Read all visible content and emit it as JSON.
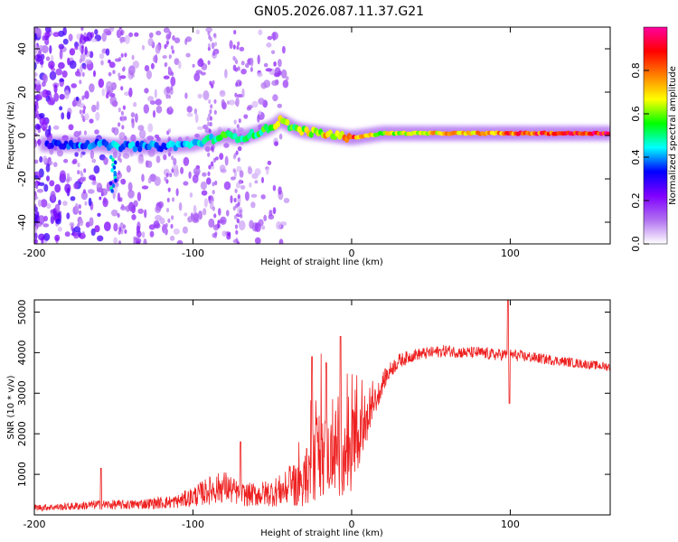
{
  "title": "GN05.2026.087.11.37.G21",
  "chart_data": [
    {
      "type": "heatmap",
      "name": "spectrogram",
      "xlabel": "Height of straight line (km)",
      "ylabel": "Frequency (Hz)",
      "xlim": [
        -200,
        163
      ],
      "ylim": [
        -50,
        50
      ],
      "xticks": [
        -200,
        -100,
        0,
        100
      ],
      "yticks": [
        -40,
        -20,
        0,
        20,
        40
      ],
      "colorbar": {
        "label": "Normalized spectral amplitude",
        "range": [
          0.0,
          1.0
        ],
        "ticks": [
          0.0,
          0.2,
          0.4,
          0.6,
          0.8
        ],
        "colormap": [
          "#ffffff",
          "#b070f0",
          "#8000ff",
          "#0000ff",
          "#00ffff",
          "#00ff00",
          "#ffff00",
          "#ff8000",
          "#ff0000",
          "#ff00a0"
        ]
      },
      "ridge": {
        "x": [
          -200,
          -185,
          -175,
          -160,
          -150,
          -140,
          -120,
          -100,
          -90,
          -80,
          -70,
          -60,
          -50,
          -45,
          -40,
          -35,
          -30,
          -20,
          -10,
          0,
          10,
          20,
          40,
          60,
          80,
          100,
          120,
          140,
          163
        ],
        "y": [
          -4,
          -4,
          -4,
          -4,
          -5,
          -5,
          -5,
          -4,
          -2,
          0,
          -1,
          1,
          4,
          7,
          5,
          3,
          2,
          1,
          0,
          -1,
          0,
          1,
          1,
          1,
          1,
          1,
          1,
          1,
          1
        ],
        "amplitude": [
          0.25,
          0.35,
          0.4,
          0.38,
          0.45,
          0.42,
          0.4,
          0.45,
          0.5,
          0.55,
          0.5,
          0.55,
          0.6,
          0.65,
          0.6,
          0.6,
          0.65,
          0.7,
          0.75,
          0.85,
          0.75,
          0.65,
          0.7,
          0.75,
          0.8,
          0.85,
          0.9,
          0.95,
          0.98
        ]
      }
    },
    {
      "type": "line",
      "name": "snr",
      "xlabel": "Height of straight line (km)",
      "ylabel": "SNR (10 * v/v)",
      "xlim": [
        -200,
        163
      ],
      "ylim": [
        0,
        5300
      ],
      "xticks": [
        -200,
        -100,
        0,
        100
      ],
      "yticks": [
        1000,
        2000,
        3000,
        4000,
        5000
      ],
      "color": "#ee2020",
      "envelope": {
        "x": [
          -200,
          -180,
          -160,
          -140,
          -120,
          -110,
          -100,
          -90,
          -80,
          -70,
          -60,
          -50,
          -40,
          -30,
          -25,
          -20,
          -15,
          -10,
          -5,
          0,
          5,
          10,
          15,
          20,
          25,
          30,
          40,
          50,
          60,
          70,
          80,
          90,
          100,
          110,
          120,
          130,
          140,
          150,
          163
        ],
        "y": [
          180,
          200,
          250,
          250,
          300,
          330,
          450,
          600,
          700,
          500,
          500,
          550,
          650,
          800,
          1200,
          1600,
          1400,
          1600,
          1300,
          1600,
          1900,
          2300,
          2800,
          3300,
          3600,
          3800,
          3950,
          4000,
          4050,
          4000,
          4000,
          3950,
          3950,
          3900,
          3850,
          3800,
          3750,
          3700,
          3650
        ],
        "noise": [
          80,
          90,
          120,
          120,
          150,
          170,
          250,
          350,
          400,
          280,
          300,
          350,
          450,
          600,
          900,
          1200,
          900,
          1100,
          900,
          1000,
          700,
          500,
          350,
          250,
          200,
          180,
          150,
          150,
          150,
          150,
          150,
          150,
          150,
          140,
          130,
          120,
          120,
          110,
          110
        ]
      },
      "spikes": [
        {
          "x": -158,
          "y": 1150
        },
        {
          "x": -70,
          "y": 1800
        },
        {
          "x": -25,
          "y": 3900
        },
        {
          "x": -16,
          "y": 3750
        },
        {
          "x": -7,
          "y": 4400
        },
        {
          "x": 98.5,
          "y": 5300
        },
        {
          "x": 99.5,
          "y": 2750
        }
      ]
    }
  ]
}
